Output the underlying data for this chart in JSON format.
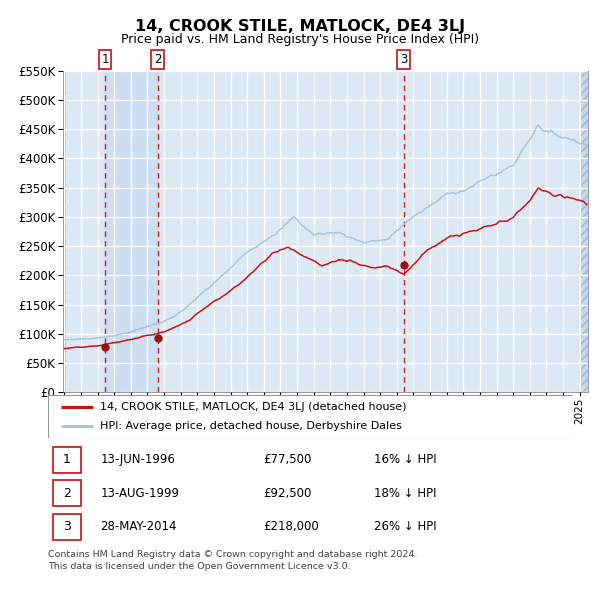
{
  "title": "14, CROOK STILE, MATLOCK, DE4 3LJ",
  "subtitle": "Price paid vs. HM Land Registry's House Price Index (HPI)",
  "legend_line1": "14, CROOK STILE, MATLOCK, DE4 3LJ (detached house)",
  "legend_line2": "HPI: Average price, detached house, Derbyshire Dales",
  "sale_date1": "13-JUN-1996",
  "sale_price1": 77500,
  "sale_pct1": "16% ↓ HPI",
  "sale_date2": "13-AUG-1999",
  "sale_price2": 92500,
  "sale_pct2": "18% ↓ HPI",
  "sale_date3": "28-MAY-2014",
  "sale_price3": 218000,
  "sale_pct3": "26% ↓ HPI",
  "hpi_color": "#aac4e0",
  "property_color": "#cc1111",
  "sale_marker_color": "#991111",
  "dashed_line_color": "#cc2222",
  "bg_color": "#dce9f5",
  "grid_color": "#ffffff",
  "ylim_min": 0,
  "ylim_max": 550000,
  "xlim_min": 1993.92,
  "xlim_max": 2025.5,
  "footer_line1": "Contains HM Land Registry data © Crown copyright and database right 2024.",
  "footer_line2": "This data is licensed under the Open Government Licence v3.0."
}
